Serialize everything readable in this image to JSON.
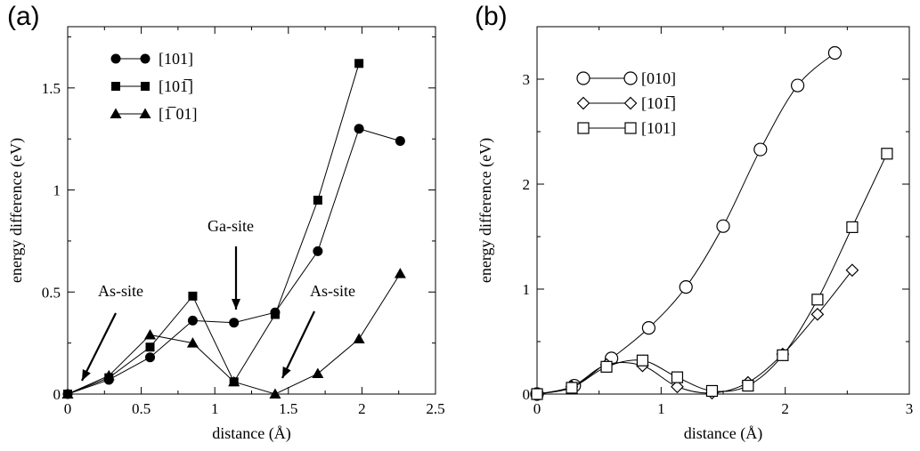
{
  "chart_data": [
    {
      "panel": "(a)",
      "type": "line",
      "xlabel": "distance (Å)",
      "ylabel": "energy difference (eV)",
      "xlim": [
        0,
        2.5
      ],
      "ylim": [
        0,
        1.8
      ],
      "xticks": [
        0,
        0.5,
        1,
        1.5,
        2,
        2.5
      ],
      "xtick_labels": [
        "0",
        "0.5",
        "1",
        "1.5",
        "2",
        "2.5"
      ],
      "yticks": [
        0,
        0.5,
        1,
        1.5
      ],
      "ytick_labels": [
        "0",
        "0.5",
        "1",
        "1.5"
      ],
      "legend_position": "top-left",
      "series": [
        {
          "name": "[101]",
          "marker": "circle-filled",
          "x": [
            0,
            0.28,
            0.56,
            0.85,
            1.13,
            1.41,
            1.7,
            1.98,
            2.26
          ],
          "y": [
            0,
            0.07,
            0.18,
            0.36,
            0.35,
            0.4,
            0.7,
            1.3,
            1.24
          ]
        },
        {
          "name": "[101̅]",
          "marker": "square-filled",
          "x": [
            0,
            0.28,
            0.56,
            0.85,
            1.13,
            1.41,
            1.7,
            1.98
          ],
          "y": [
            0,
            0.08,
            0.23,
            0.48,
            0.06,
            0.39,
            0.95,
            1.62
          ]
        },
        {
          "name": "[1̅ 01]",
          "marker": "triangle-filled",
          "x": [
            0,
            0.28,
            0.56,
            0.85,
            1.13,
            1.41,
            1.7,
            1.98,
            2.26
          ],
          "y": [
            0,
            0.09,
            0.29,
            0.25,
            0.06,
            0.0,
            0.1,
            0.27,
            0.59
          ]
        }
      ],
      "annotations": [
        {
          "text": "As-site",
          "x": 0.05,
          "y": 0.01
        },
        {
          "text": "Ga-site",
          "x": 1.13,
          "y": 0.36
        },
        {
          "text": "As-site",
          "x": 1.44,
          "y": 0.01
        }
      ]
    },
    {
      "panel": "(b)",
      "type": "line",
      "xlabel": "distance (Å)",
      "ylabel": "energy difference (eV)",
      "xlim": [
        0,
        3
      ],
      "ylim": [
        0,
        3.5
      ],
      "xticks": [
        0,
        1,
        2,
        3
      ],
      "xtick_labels": [
        "0",
        "1",
        "2",
        "3"
      ],
      "yticks": [
        0,
        1,
        2,
        3
      ],
      "ytick_labels": [
        "0",
        "1",
        "2",
        "3"
      ],
      "legend_position": "top-left",
      "series": [
        {
          "name": "[010]",
          "marker": "circle-open",
          "x": [
            0,
            0.3,
            0.6,
            0.9,
            1.2,
            1.5,
            1.8,
            2.1,
            2.4
          ],
          "y": [
            0,
            0.08,
            0.34,
            0.63,
            1.02,
            1.6,
            2.33,
            2.94,
            3.25
          ]
        },
        {
          "name": "[101̅]",
          "marker": "diamond-open",
          "x": [
            0,
            0.28,
            0.56,
            0.85,
            1.13,
            1.41,
            1.7,
            1.98,
            2.26,
            2.54
          ],
          "y": [
            0,
            0.07,
            0.28,
            0.27,
            0.07,
            0.01,
            0.11,
            0.38,
            0.76,
            1.18
          ]
        },
        {
          "name": "[101]",
          "marker": "square-open",
          "x": [
            0,
            0.28,
            0.56,
            0.85,
            1.13,
            1.41,
            1.7,
            1.98,
            2.26,
            2.54,
            2.82
          ],
          "y": [
            0,
            0.06,
            0.26,
            0.32,
            0.16,
            0.03,
            0.08,
            0.37,
            0.9,
            1.59,
            2.29
          ]
        }
      ]
    }
  ]
}
